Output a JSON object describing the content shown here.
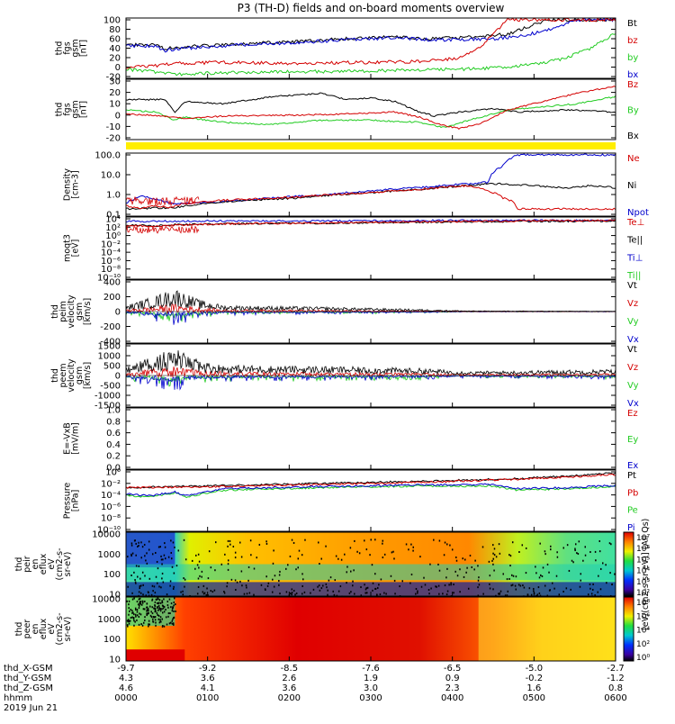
{
  "title": "P3 (TH-D) fields and on-board moments overview",
  "date_label": "2019 Jun 21",
  "colors": {
    "black": "#000000",
    "red": "#d40000",
    "green": "#22cc22",
    "blue": "#0000cc",
    "yellow": "#ffee00",
    "cyan": "#00c8c8"
  },
  "chart_data": [
    {
      "id": "fgs_gsm_total",
      "type": "line",
      "ylabel": [
        "thd",
        "fgs",
        "gsm",
        "[nT]"
      ],
      "yticks": [
        "100",
        "80",
        "60",
        "40",
        "20",
        "0",
        "-20"
      ],
      "ylim": [
        -20,
        100
      ],
      "legend": [
        {
          "label": "Bt",
          "color": "black"
        },
        {
          "label": "bz",
          "color": "red"
        },
        {
          "label": "by",
          "color": "green"
        },
        {
          "label": "bx",
          "color": "blue"
        }
      ],
      "series": [
        {
          "color": "black",
          "x": [
            0,
            6,
            8,
            10,
            16,
            25,
            35,
            45,
            55,
            62,
            70,
            78,
            82,
            86,
            90,
            95,
            100
          ],
          "y": [
            46,
            48,
            38,
            42,
            45,
            50,
            54,
            60,
            64,
            60,
            63,
            70,
            85,
            100,
            100,
            100,
            100
          ]
        },
        {
          "color": "blue",
          "x": [
            0,
            6,
            8,
            10,
            16,
            25,
            35,
            45,
            55,
            62,
            70,
            75,
            80,
            85,
            88,
            92
          ],
          "y": [
            44,
            45,
            35,
            38,
            43,
            48,
            52,
            58,
            62,
            58,
            58,
            60,
            65,
            75,
            85,
            100
          ]
        },
        {
          "color": "red",
          "x": [
            0,
            6,
            10,
            20,
            35,
            50,
            60,
            68,
            72,
            75,
            78
          ],
          "y": [
            0,
            3,
            8,
            10,
            8,
            10,
            12,
            18,
            40,
            70,
            100
          ]
        },
        {
          "color": "green",
          "x": [
            0,
            6,
            10,
            20,
            35,
            50,
            60,
            70,
            78,
            85,
            90,
            95,
            100
          ],
          "y": [
            -5,
            -10,
            -15,
            -12,
            -10,
            -8,
            -6,
            -4,
            0,
            8,
            20,
            40,
            72
          ]
        }
      ]
    },
    {
      "id": "fgs_gsm_components",
      "type": "line",
      "ylabel": [
        "thd",
        "fgs",
        "gsm",
        "[nT]"
      ],
      "yticks": [
        "30",
        "20",
        "10",
        "0",
        "-10",
        "-20"
      ],
      "ylim": [
        -25,
        30
      ],
      "legend": [
        {
          "label": "Bz",
          "color": "red"
        },
        {
          "label": "By",
          "color": "green"
        },
        {
          "label": "Bx",
          "color": "black"
        }
      ],
      "series": [
        {
          "color": "black",
          "x": [
            0,
            8,
            10,
            12,
            20,
            30,
            40,
            45,
            50,
            55,
            60,
            63,
            68,
            75,
            80,
            90,
            100
          ],
          "y": [
            12,
            12,
            0,
            10,
            8,
            15,
            18,
            12,
            14,
            10,
            0,
            -4,
            0,
            3,
            0,
            2,
            0
          ]
        },
        {
          "color": "green",
          "x": [
            0,
            6,
            10,
            12,
            20,
            30,
            40,
            50,
            60,
            65,
            70,
            78,
            85,
            92,
            100
          ],
          "y": [
            2,
            0,
            -8,
            -5,
            -10,
            -12,
            -8,
            -8,
            -10,
            -15,
            -8,
            2,
            5,
            8,
            15
          ]
        },
        {
          "color": "red",
          "x": [
            0,
            8,
            12,
            20,
            35,
            45,
            55,
            60,
            64,
            68,
            72,
            78,
            85,
            92,
            100
          ],
          "y": [
            -2,
            -4,
            -6,
            -4,
            -3,
            -2,
            0,
            -5,
            -12,
            -16,
            -12,
            2,
            10,
            18,
            25
          ]
        }
      ]
    },
    {
      "id": "density",
      "type": "line",
      "ylabel": [
        "Density",
        "[cm-3]"
      ],
      "yticks": [
        "100.0",
        "10.0",
        "1.0",
        "0.1"
      ],
      "ylim": [
        0.05,
        100
      ],
      "log": true,
      "legend": [
        {
          "label": "Ne",
          "color": "red"
        },
        {
          "label": "Ni",
          "color": "black"
        },
        {
          "label": "Npot",
          "color": "blue"
        }
      ],
      "series": [
        {
          "color": "blue",
          "x": [
            0,
            3,
            6,
            9,
            12,
            20,
            30,
            40,
            50,
            60,
            70,
            74,
            77,
            80
          ],
          "y": [
            0.2,
            0.5,
            0.35,
            0.2,
            0.2,
            0.25,
            0.4,
            0.6,
            1,
            1.5,
            2.5,
            3,
            25,
            100
          ]
        },
        {
          "color": "black",
          "x": [
            0,
            10,
            20,
            35,
            50,
            60,
            70,
            75,
            80,
            85,
            90,
            95,
            100
          ],
          "y": [
            0.1,
            0.12,
            0.25,
            0.4,
            0.8,
            1.2,
            2,
            2.5,
            2.2,
            1.8,
            1.5,
            2,
            1.5
          ]
        },
        {
          "color": "red",
          "x": [
            0,
            3,
            6,
            9,
            12,
            20,
            35,
            50,
            60,
            70,
            72,
            75,
            77,
            79,
            80
          ],
          "y": [
            0.15,
            0.1,
            0.15,
            0.12,
            0.2,
            0.3,
            0.45,
            0.8,
            1.2,
            2,
            1.5,
            0.8,
            0.4,
            0.25,
            0.1
          ]
        }
      ]
    },
    {
      "id": "temperature",
      "type": "line",
      "ylabel": [
        "moqt3",
        "[eV]"
      ],
      "yticks": [
        "10⁴",
        "10²",
        "10⁰",
        "10⁻²",
        "10⁻⁴",
        "10⁻⁶",
        "10⁻⁸",
        "10⁻¹⁰"
      ],
      "ylim": [
        -10,
        4
      ],
      "log": true,
      "legend": [
        {
          "label": "Te⊥",
          "color": "red"
        },
        {
          "label": "Te||",
          "color": "black"
        },
        {
          "label": "Ti⊥",
          "color": "blue"
        },
        {
          "label": "Ti||",
          "color": "green"
        }
      ],
      "series": [
        {
          "color": "blue",
          "x": [
            0,
            20,
            40,
            60,
            80,
            100
          ],
          "y": [
            3.4,
            3.5,
            3.5,
            3.6,
            3.6,
            3.6
          ]
        },
        {
          "color": "black",
          "x": [
            0,
            6,
            10,
            20,
            40,
            60,
            80,
            100
          ],
          "y": [
            2.5,
            2.3,
            2.6,
            2.8,
            3,
            3.2,
            3.4,
            3.5
          ]
        },
        {
          "color": "red",
          "x": [
            0,
            6,
            10,
            20,
            40,
            60,
            80,
            100
          ],
          "y": [
            2.4,
            2.2,
            2.5,
            2.8,
            3,
            3.3,
            3.5,
            3.6
          ]
        }
      ]
    },
    {
      "id": "peim_velocity",
      "type": "line",
      "ylabel": [
        "thd",
        "peim",
        "velocity",
        "gsm",
        "[km/s]"
      ],
      "yticks": [
        "400",
        "200",
        "0",
        "-200",
        "-400"
      ],
      "ylim": [
        -400,
        400
      ],
      "legend": [
        {
          "label": "Vt",
          "color": "black"
        },
        {
          "label": "Vz",
          "color": "red"
        },
        {
          "label": "Vy",
          "color": "green"
        },
        {
          "label": "Vx",
          "color": "blue"
        }
      ],
      "noise": {
        "envelope_x": [
          0,
          5,
          10,
          15,
          20,
          40,
          60,
          70,
          100
        ],
        "envelope_y": [
          80,
          180,
          300,
          150,
          80,
          60,
          30,
          10,
          5
        ]
      }
    },
    {
      "id": "peem_velocity",
      "type": "line",
      "ylabel": [
        "thd",
        "peem",
        "velocity",
        "gsm",
        "[km/s]"
      ],
      "yticks": [
        "1500",
        "1000",
        "500",
        "0",
        "-500",
        "-1000",
        "-1500"
      ],
      "ylim": [
        -1500,
        1500
      ],
      "legend": [
        {
          "label": "Vt",
          "color": "black"
        },
        {
          "label": "Vz",
          "color": "red"
        },
        {
          "label": "Vy",
          "color": "green"
        },
        {
          "label": "Vx",
          "color": "blue"
        }
      ],
      "noise": {
        "envelope_x": [
          0,
          5,
          10,
          15,
          20,
          40,
          60,
          70,
          100
        ],
        "envelope_y": [
          400,
          900,
          1300,
          700,
          500,
          450,
          350,
          200,
          300
        ]
      }
    },
    {
      "id": "e_field",
      "type": "line",
      "ylabel": [
        "E=-VxB",
        "[mV/m]"
      ],
      "yticks": [
        "1.0",
        "0.8",
        "0.6",
        "0.4",
        "0.2",
        "0.0"
      ],
      "ylim": [
        0,
        1
      ],
      "legend": [
        {
          "label": "Ez",
          "color": "red"
        },
        {
          "label": "Ey",
          "color": "green"
        },
        {
          "label": "Ex",
          "color": "blue"
        }
      ],
      "series": []
    },
    {
      "id": "pressure",
      "type": "line",
      "ylabel": [
        "Pressure",
        "[nPa]"
      ],
      "yticks": [
        "10⁰",
        "10⁻²",
        "10⁻⁴",
        "10⁻⁶",
        "10⁻⁸",
        "10⁻¹⁰"
      ],
      "ylim": [
        -10,
        1
      ],
      "log": true,
      "legend": [
        {
          "label": "Pt",
          "color": "black"
        },
        {
          "label": "Pb",
          "color": "red"
        },
        {
          "label": "Pe",
          "color": "green"
        },
        {
          "label": "Pi",
          "color": "blue"
        }
      ],
      "series": [
        {
          "color": "black",
          "x": [
            0,
            20,
            40,
            60,
            80,
            90,
            100
          ],
          "y": [
            -2,
            -1.6,
            -1.2,
            -0.8,
            -0.3,
            0.2,
            0.8
          ]
        },
        {
          "color": "red",
          "x": [
            0,
            20,
            40,
            60,
            80,
            90,
            100
          ],
          "y": [
            -2,
            -1.8,
            -1.4,
            -1,
            -0.4,
            0,
            0.5
          ]
        },
        {
          "color": "green",
          "x": [
            0,
            5,
            10,
            12,
            20,
            40,
            60,
            75,
            80,
            90,
            100
          ],
          "y": [
            -3.5,
            -3.8,
            -3,
            -3.8,
            -2.5,
            -2,
            -1.7,
            -1.7,
            -2.5,
            -2.2,
            -1.8
          ]
        },
        {
          "color": "blue",
          "x": [
            0,
            5,
            10,
            12,
            20,
            40,
            60,
            75,
            80,
            90,
            100
          ],
          "y": [
            -3.2,
            -3.6,
            -2.8,
            -3.6,
            -2.2,
            -1.8,
            -1.5,
            -1.4,
            -2.2,
            -2,
            -1.6
          ]
        }
      ]
    },
    {
      "id": "peir_spectrogram",
      "type": "heatmap",
      "ylabel": [
        "thd",
        "peir",
        "en",
        "eflux",
        "eV",
        "(cm2-s-",
        "sr-eV)"
      ],
      "yticks": [
        "10000",
        "1000",
        "100",
        "10"
      ],
      "colorbar_ticks": [
        "10⁷",
        "10⁶",
        "10⁵",
        "10⁴",
        "10³",
        "10²"
      ]
    },
    {
      "id": "peer_spectrogram",
      "type": "heatmap",
      "ylabel": [
        "thd",
        "peer",
        "en",
        "eflux",
        "eV",
        "(cm2-s-",
        "sr-eV)"
      ],
      "yticks": [
        "10000",
        "1000",
        "100",
        "10"
      ],
      "colorbar_ticks": [
        "10⁸",
        "10⁶",
        "10⁴",
        "10²",
        "10⁰"
      ]
    }
  ],
  "colorbar_label": "[eV/(cm2-s-sr-eV)] (All Qs)",
  "x_axis": {
    "row_labels": [
      "thd_X-GSM",
      "thd_Y-GSM",
      "thd_Z-GSM",
      "hhmm"
    ],
    "ticks": [
      {
        "X": "-9.7",
        "Y": "4.3",
        "Z": "4.6",
        "hhmm": "0000"
      },
      {
        "X": "-9.2",
        "Y": "3.6",
        "Z": "4.1",
        "hhmm": "0100"
      },
      {
        "X": "-8.5",
        "Y": "2.6",
        "Z": "3.6",
        "hhmm": "0200"
      },
      {
        "X": "-7.6",
        "Y": "1.9",
        "Z": "3.0",
        "hhmm": "0300"
      },
      {
        "X": "-6.5",
        "Y": "0.9",
        "Z": "2.3",
        "hhmm": "0400"
      },
      {
        "X": "-5.0",
        "Y": "-0.2",
        "Z": "1.6",
        "hhmm": "0500"
      },
      {
        "X": "-2.7",
        "Y": "-1.2",
        "Z": "0.8",
        "hhmm": "0600"
      }
    ]
  }
}
